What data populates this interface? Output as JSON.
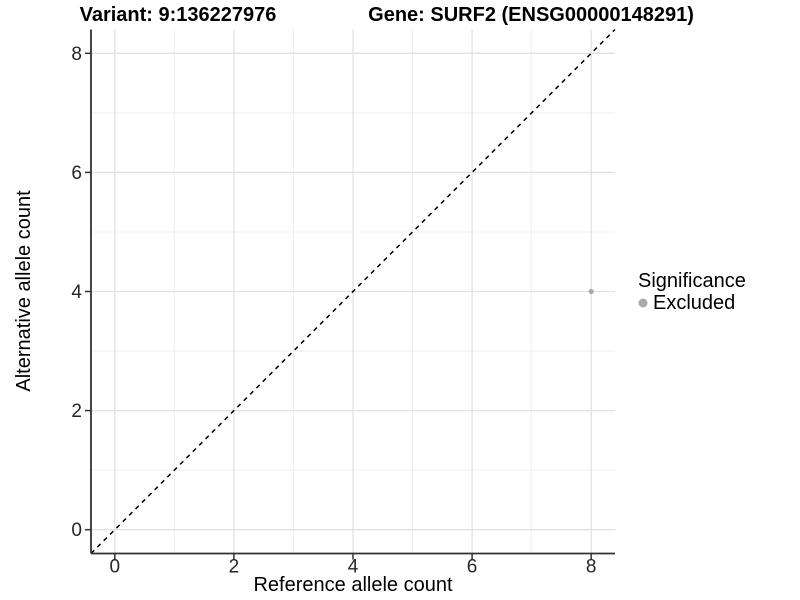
{
  "titles": {
    "variant": "Variant: 9:136227976",
    "gene": "Gene: SURF2 (ENSG00000148291)"
  },
  "axes": {
    "x_label": "Reference allele count",
    "y_label": "Alternative allele count"
  },
  "legend": {
    "title": "Significance",
    "items": [
      {
        "label": "Excluded",
        "color": "#aaaaaa",
        "marker": "circle-icon"
      }
    ]
  },
  "colors": {
    "background": "#ffffff",
    "point": "#aaaaaa",
    "reference_line": "#000000",
    "grid_major": "#e2e2e2",
    "grid_minor": "#f0f0f0",
    "axis": "#333333"
  },
  "chart_data": {
    "type": "scatter",
    "title": "Variant: 9:136227976 | Gene: SURF2 (ENSG00000148291)",
    "xlabel": "Reference allele count",
    "ylabel": "Alternative allele count",
    "xlim": [
      -0.4,
      8.4
    ],
    "ylim": [
      -0.4,
      8.4
    ],
    "x_ticks": [
      0,
      2,
      4,
      6,
      8
    ],
    "y_ticks": [
      0,
      2,
      4,
      6,
      8
    ],
    "x_minor": [
      1,
      3,
      5,
      7
    ],
    "y_minor": [
      1,
      3,
      5,
      7
    ],
    "grid": true,
    "legend_position": "right",
    "reference_line": {
      "type": "identity",
      "style": "dashed",
      "color": "#000000"
    },
    "series": [
      {
        "name": "Excluded",
        "color": "#aaaaaa",
        "points": [
          {
            "x": 8,
            "y": 4
          }
        ]
      }
    ]
  }
}
